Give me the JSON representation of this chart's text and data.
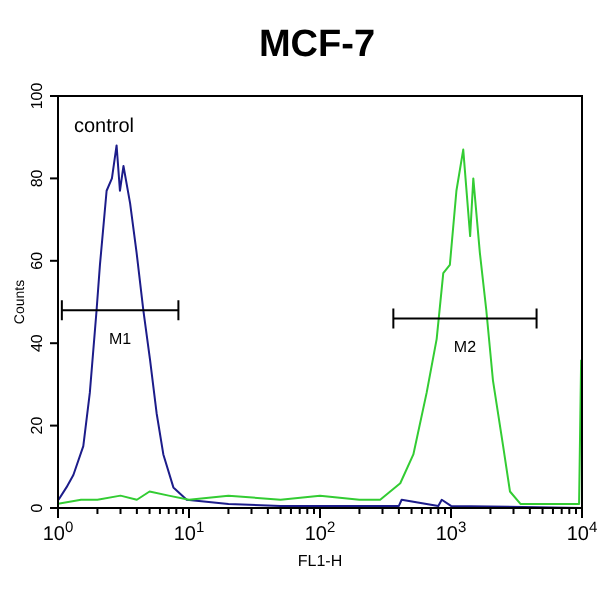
{
  "chart_data": {
    "type": "line",
    "title": "MCF-7",
    "xlabel": "FL1-H",
    "ylabel": "Counts",
    "log": "x",
    "xlim": [
      1,
      10000
    ],
    "ylim": [
      0,
      100
    ],
    "xticks": [
      {
        "value": 1,
        "label": "10$^{0}$"
      },
      {
        "value": 2,
        "label": null
      },
      {
        "value": 3,
        "label": null
      },
      {
        "value": 4,
        "label": null
      },
      {
        "value": 5,
        "label": null
      },
      {
        "value": 6,
        "label": null
      },
      {
        "value": 7,
        "label": null
      },
      {
        "value": 8,
        "label": null
      },
      {
        "value": 9,
        "label": null
      },
      {
        "value": 10,
        "label": "10$^{1}$"
      },
      {
        "value": 20,
        "label": null
      },
      {
        "value": 30,
        "label": null
      },
      {
        "value": 40,
        "label": null
      },
      {
        "value": 50,
        "label": null
      },
      {
        "value": 60,
        "label": null
      },
      {
        "value": 70,
        "label": null
      },
      {
        "value": 80,
        "label": null
      },
      {
        "value": 90,
        "label": null
      },
      {
        "value": 100,
        "label": "10$^{2}$"
      },
      {
        "value": 200,
        "label": null
      },
      {
        "value": 300,
        "label": null
      },
      {
        "value": 400,
        "label": null
      },
      {
        "value": 500,
        "label": null
      },
      {
        "value": 600,
        "label": null
      },
      {
        "value": 700,
        "label": null
      },
      {
        "value": 800,
        "label": null
      },
      {
        "value": 900,
        "label": null
      },
      {
        "value": 1000,
        "label": "10$^{3}$"
      },
      {
        "value": 2000,
        "label": null
      },
      {
        "value": 3000,
        "label": null
      },
      {
        "value": 4000,
        "label": null
      },
      {
        "value": 5000,
        "label": null
      },
      {
        "value": 6000,
        "label": null
      },
      {
        "value": 7000,
        "label": null
      },
      {
        "value": 8000,
        "label": null
      },
      {
        "value": 9000,
        "label": null
      },
      {
        "value": 10000,
        "label": "10$^{4}$"
      }
    ],
    "yticks": [
      0,
      20,
      40,
      60,
      80,
      100
    ],
    "grid": false,
    "marker": "none",
    "line_style": "solid",
    "annotations": [
      "control"
    ],
    "series": [
      {
        "color": "#1c1c8a",
        "x": [
          1.01,
          1.16,
          1.31,
          1.56,
          1.75,
          1.97,
          2.09,
          2.35,
          2.58,
          2.8,
          2.97,
          3.16,
          3.55,
          3.98,
          4.48,
          5.04,
          5.66,
          6.37,
          7.6,
          9.6,
          20,
          50,
          100,
          400,
          420,
          800,
          850,
          1000,
          10000
        ],
        "values": [
          2,
          5,
          8,
          15,
          28,
          48,
          59,
          77,
          80,
          88,
          77,
          83,
          74,
          62,
          48,
          36,
          23,
          13,
          5,
          2,
          1,
          0.5,
          0.5,
          0.5,
          2,
          0.5,
          2,
          0.5,
          0
        ]
      },
      {
        "color": "#33cc33",
        "x": [
          1,
          1.5,
          2,
          3,
          4,
          5,
          7,
          10,
          20,
          50,
          100,
          200,
          288,
          410,
          516,
          652,
          777,
          873,
          980,
          1100,
          1240,
          1400,
          1480,
          1660,
          1860,
          2090,
          2500,
          2820,
          3390,
          5000,
          9500,
          9850
        ],
        "values": [
          1,
          2,
          2,
          3,
          2,
          4,
          3,
          2,
          3,
          2,
          3,
          2,
          2,
          6,
          13,
          28,
          41,
          57,
          59,
          77,
          87,
          66,
          80,
          62,
          48,
          31,
          15,
          4,
          1,
          1,
          1,
          36
        ]
      },
      {
        "type": "line",
        "name": "M1",
        "color": "#000000",
        "x": [
          1.07,
          8.3
        ],
        "values": [
          48,
          48
        ]
      },
      {
        "type": "line",
        "name": "M2",
        "color": "#000000",
        "x": [
          363,
          4500
        ],
        "values": [
          46,
          46
        ]
      }
    ]
  }
}
